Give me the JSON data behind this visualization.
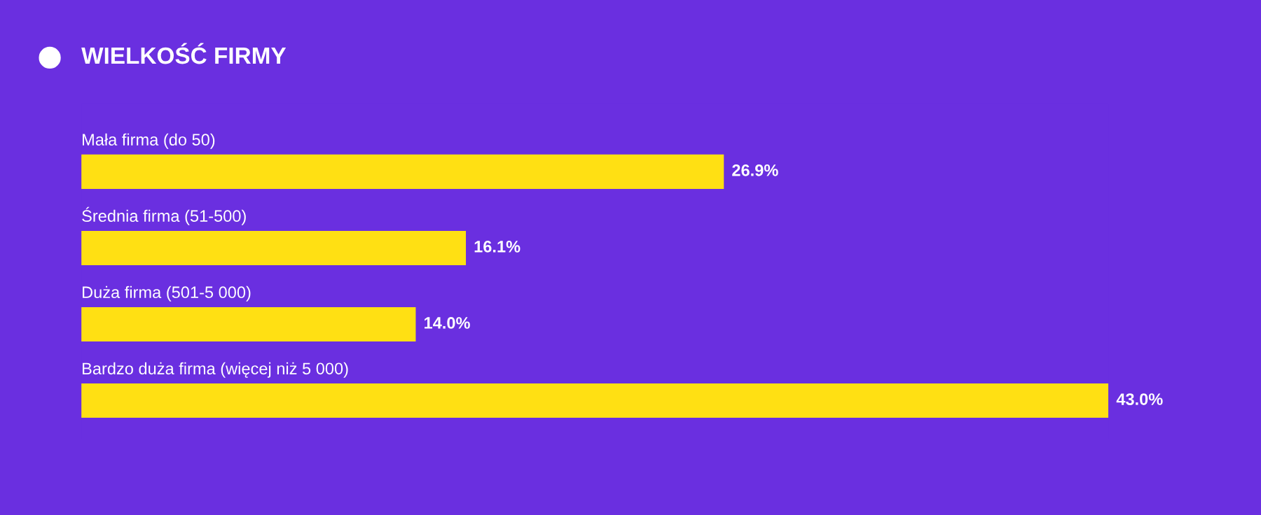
{
  "chart_data": {
    "type": "bar",
    "orientation": "horizontal",
    "title": "WIELKOŚĆ FIRMY",
    "categories": [
      "Mała firma (do 50)",
      "Średnia firma (51-500)",
      "Duża firma (501-5 000)",
      "Bardzo duża firma (więcej niż 5 000)"
    ],
    "values": [
      26.9,
      16.1,
      14.0,
      43.0
    ],
    "value_labels": [
      "26.9%",
      "16.1%",
      "14.0%",
      "43.0%"
    ],
    "color": "#ffe013"
  }
}
